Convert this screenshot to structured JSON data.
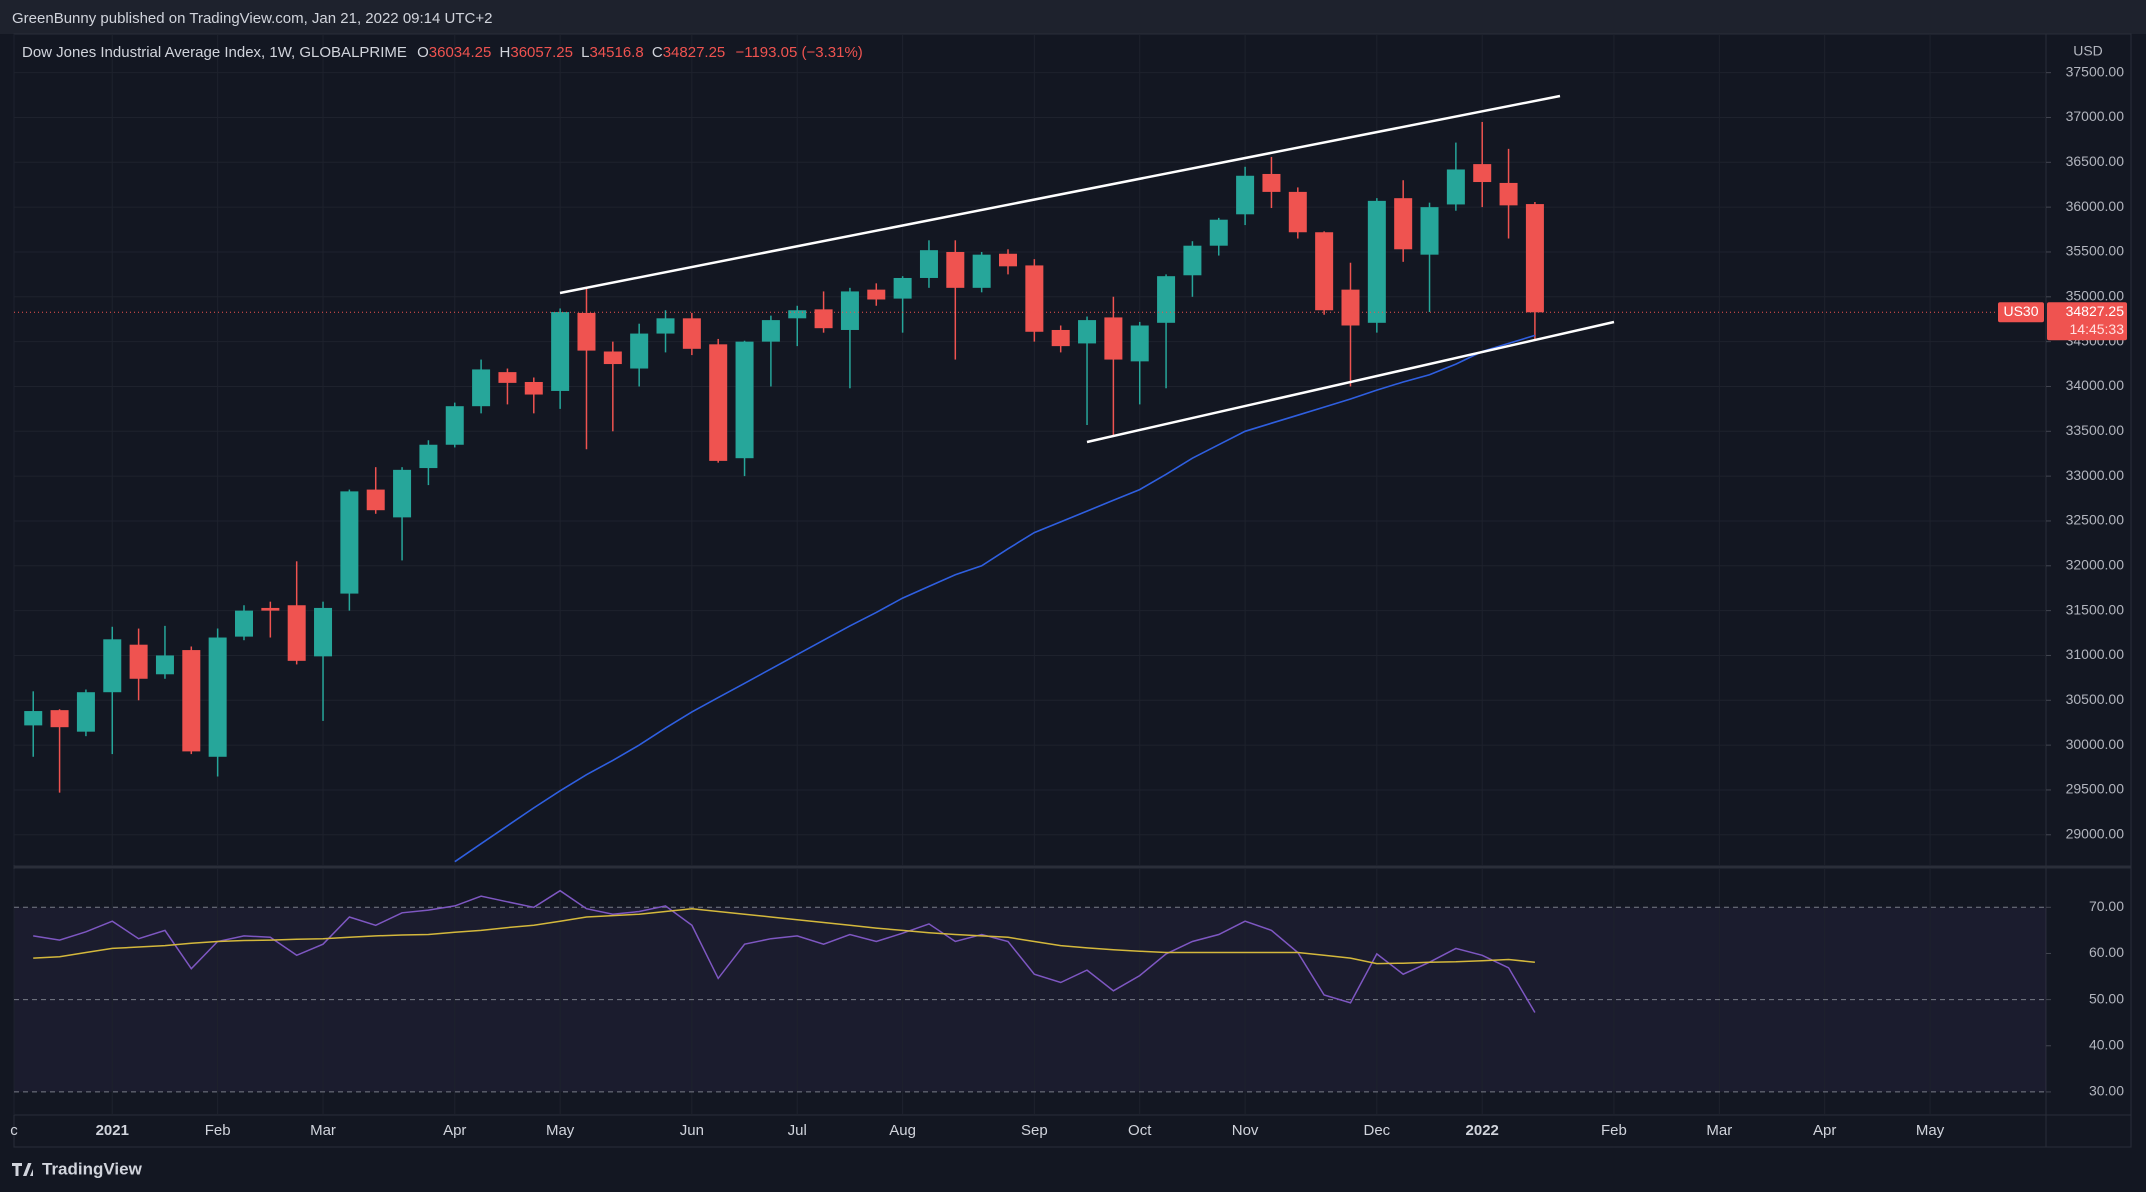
{
  "header": "GreenBunny published on TradingView.com, Jan 21, 2022 09:14 UTC+2",
  "footer": "TradingView",
  "chart_data": [
    {
      "type": "candlestick",
      "title": "Dow Jones Industrial Average Index, 1W, GLOBALPRIME",
      "ohlc_labels": [
        "O",
        "H",
        "L",
        "C"
      ],
      "change_label": "−1193.05 (−3.31%)",
      "currency": "USD",
      "symbol": "US30",
      "countdown": "14:45:33",
      "up_color": "#26a69a",
      "down_color": "#ef5350",
      "grid": true,
      "open": [
        30220,
        30390,
        30150,
        30590,
        31120,
        30790,
        31060,
        29870,
        31210,
        31530,
        31560,
        30990,
        31690,
        32850,
        32540,
        33090,
        33350,
        33780,
        34160,
        34050,
        33950,
        34820,
        34390,
        34200,
        34590,
        34760,
        34470,
        33200,
        34500,
        34760,
        34860,
        34630,
        35080,
        34980,
        35210,
        35500,
        35100,
        35480,
        35350,
        34630,
        34480,
        34770,
        34280,
        34710,
        35240,
        35570,
        35920,
        36370,
        36170,
        35720,
        35080,
        34710,
        36100,
        35470,
        36030,
        36480,
        36270,
        36034.25
      ],
      "high": [
        30600,
        30400,
        30620,
        31320,
        31300,
        31330,
        31100,
        31300,
        31560,
        31600,
        32050,
        31600,
        32850,
        33100,
        33100,
        33400,
        33820,
        34300,
        34200,
        34100,
        34870,
        35100,
        34500,
        34700,
        34850,
        34820,
        34530,
        34510,
        34790,
        34900,
        35060,
        35100,
        35150,
        35230,
        35630,
        35630,
        35500,
        35530,
        35420,
        34680,
        34780,
        35000,
        34720,
        35250,
        35620,
        35880,
        36450,
        36560,
        36220,
        35730,
        35380,
        36100,
        36300,
        36050,
        36720,
        36950,
        36650,
        36057.25
      ],
      "low": [
        29870,
        29470,
        30100,
        29900,
        30500,
        30740,
        29900,
        29650,
        31170,
        31200,
        30900,
        30270,
        31500,
        32580,
        32060,
        32900,
        33320,
        33700,
        33800,
        33700,
        33750,
        33300,
        33500,
        34000,
        34380,
        34350,
        33150,
        33000,
        34000,
        34450,
        34600,
        33980,
        34900,
        34600,
        35100,
        34300,
        35050,
        35250,
        34500,
        34380,
        33570,
        33450,
        33800,
        33980,
        35000,
        35460,
        35800,
        35990,
        35650,
        34800,
        34000,
        34600,
        35390,
        34830,
        35960,
        36000,
        35650,
        34516.8
      ],
      "close": [
        30380,
        30200,
        30590,
        31180,
        30740,
        31000,
        29930,
        31200,
        31500,
        31500,
        30940,
        31530,
        32830,
        32620,
        33070,
        33350,
        33780,
        34190,
        34040,
        33910,
        34830,
        34400,
        34250,
        34590,
        34760,
        34420,
        33170,
        34500,
        34740,
        34850,
        34650,
        35060,
        34970,
        35210,
        35520,
        35100,
        35470,
        35340,
        34610,
        34450,
        34740,
        34300,
        34680,
        35230,
        35570,
        35860,
        36350,
        36170,
        35720,
        34850,
        34680,
        36070,
        35530,
        36000,
        36420,
        36280,
        36020,
        34827.25
      ],
      "ma": {
        "color": "#2f5fe0",
        "values": [
          null,
          null,
          null,
          null,
          null,
          null,
          null,
          null,
          null,
          null,
          null,
          null,
          null,
          null,
          null,
          null,
          28700,
          28900,
          29100,
          29300,
          29490,
          29670,
          29830,
          30000,
          30190,
          30370,
          30530,
          30690,
          30850,
          31010,
          31170,
          31330,
          31480,
          31640,
          31770,
          31900,
          32000,
          32190,
          32370,
          32490,
          32610,
          32730,
          32850,
          33020,
          33200,
          33350,
          33500,
          33590,
          33680,
          33770,
          33860,
          33960,
          34050,
          34130,
          34250,
          34390,
          34480,
          34570
        ]
      },
      "ylim": [
        28663,
        37931
      ],
      "yticks": [
        {
          "value": 29000,
          "label": "29000.00"
        },
        {
          "value": 29500,
          "label": "29500.00"
        },
        {
          "value": 30000,
          "label": "30000.00"
        },
        {
          "value": 30500,
          "label": "30500.00"
        },
        {
          "value": 31000,
          "label": "31000.00"
        },
        {
          "value": 31500,
          "label": "31500.00"
        },
        {
          "value": 32000,
          "label": "32000.00"
        },
        {
          "value": 32500,
          "label": "32500.00"
        },
        {
          "value": 33000,
          "label": "33000.00"
        },
        {
          "value": 33500,
          "label": "33500.00"
        },
        {
          "value": 34000,
          "label": "34000.00"
        },
        {
          "value": 34500,
          "label": "34500.00"
        },
        {
          "value": 35000,
          "label": "35000.00"
        },
        {
          "value": 35500,
          "label": "35500.00"
        },
        {
          "value": 36000,
          "label": "36000.00"
        },
        {
          "value": 36500,
          "label": "36500.00"
        },
        {
          "value": 37000,
          "label": "37000.00"
        },
        {
          "value": 37500,
          "label": "37500.00"
        }
      ],
      "xlim": [
        -0.73,
        76.4
      ],
      "xticks": [
        {
          "value": -0.73,
          "label": "c"
        },
        {
          "value": 3,
          "label": "2021"
        },
        {
          "value": 7,
          "label": "Feb"
        },
        {
          "value": 11,
          "label": "Mar"
        },
        {
          "value": 16,
          "label": "Apr"
        },
        {
          "value": 20,
          "label": "May"
        },
        {
          "value": 25,
          "label": "Jun"
        },
        {
          "value": 29,
          "label": "Jul"
        },
        {
          "value": 33,
          "label": "Aug"
        },
        {
          "value": 38,
          "label": "Sep"
        },
        {
          "value": 42,
          "label": "Oct"
        },
        {
          "value": 46,
          "label": "Nov"
        },
        {
          "value": 51,
          "label": "Dec"
        },
        {
          "value": 55,
          "label": "2022"
        },
        {
          "value": 60,
          "label": "Feb"
        },
        {
          "value": 64,
          "label": "Mar"
        },
        {
          "value": 68,
          "label": "Apr"
        },
        {
          "value": 72,
          "label": "May"
        }
      ]
    },
    {
      "type": "line",
      "series": [
        {
          "color": "#7e57c2",
          "values": [
            63.8,
            62.9,
            64.7,
            67.0,
            63.2,
            65.0,
            56.7,
            62.6,
            63.8,
            63.5,
            59.6,
            62.0,
            67.9,
            66.1,
            68.8,
            69.4,
            70.3,
            72.4,
            71.2,
            70.0,
            73.6,
            69.7,
            68.5,
            69.1,
            70.3,
            66.1,
            54.6,
            62.0,
            63.2,
            63.8,
            62.0,
            64.1,
            62.6,
            64.4,
            66.4,
            62.6,
            64.1,
            62.6,
            55.5,
            53.7,
            56.4,
            51.9,
            55.2,
            59.9,
            62.6,
            64.1,
            67.0,
            65.0,
            60.2,
            51.0,
            49.3,
            59.9,
            55.5,
            58.1,
            61.1,
            59.6,
            56.9,
            47.2
          ]
        },
        {
          "color": "#d4b83c",
          "values": [
            59.0,
            59.3,
            60.2,
            61.1,
            61.4,
            61.7,
            62.2,
            62.6,
            62.8,
            62.9,
            63.1,
            63.2,
            63.5,
            63.8,
            64.0,
            64.1,
            64.6,
            65.0,
            65.6,
            66.1,
            67.0,
            67.9,
            68.2,
            68.5,
            69.1,
            69.7,
            69.1,
            68.5,
            67.9,
            67.3,
            66.7,
            66.1,
            65.5,
            65.0,
            64.5,
            64.1,
            63.8,
            63.5,
            62.6,
            61.7,
            61.2,
            60.8,
            60.5,
            60.2,
            60.2,
            60.2,
            60.2,
            60.2,
            60.2,
            59.6,
            59.0,
            57.8,
            57.9,
            58.1,
            58.2,
            58.4,
            58.7,
            58.1
          ]
        }
      ],
      "levels": [
        30,
        50,
        70
      ],
      "ylim": [
        25,
        78.3
      ],
      "yticks": [
        {
          "value": 30,
          "label": "30.00"
        },
        {
          "value": 40,
          "label": "40.00"
        },
        {
          "value": 50,
          "label": "50.00"
        },
        {
          "value": 60,
          "label": "60.00"
        },
        {
          "value": 70,
          "label": "70.00"
        }
      ]
    }
  ]
}
